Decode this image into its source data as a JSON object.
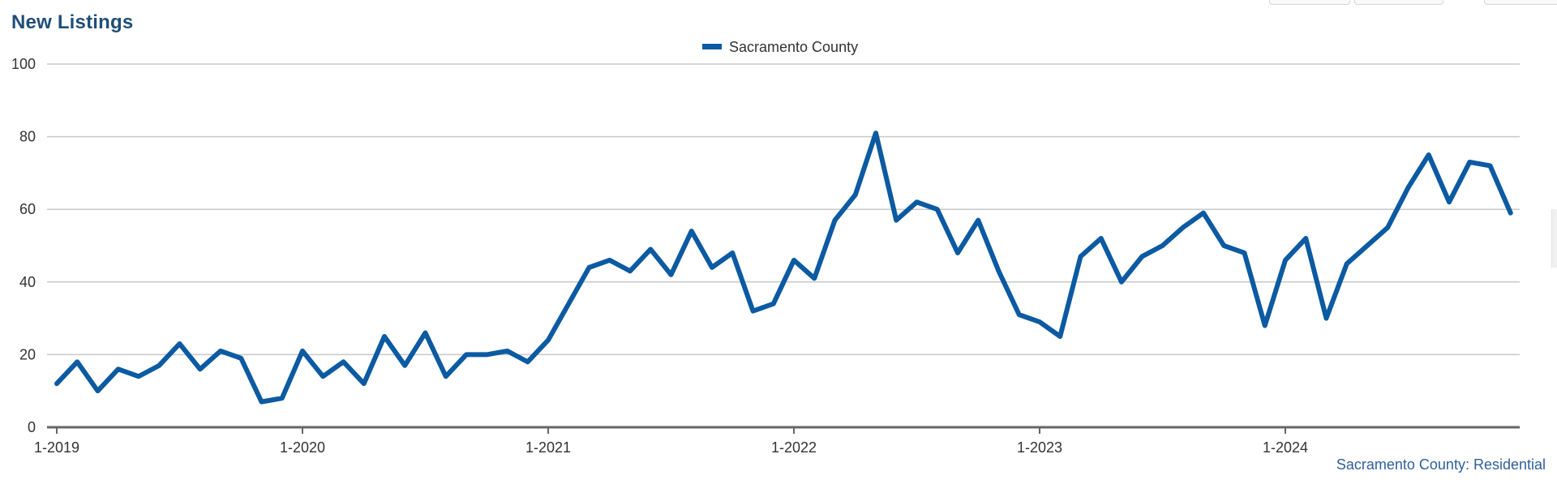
{
  "title": "New Listings",
  "source": "Sacramento County: Residential",
  "chart_data": {
    "type": "line",
    "title": "New Listings",
    "xlabel": "",
    "ylabel": "",
    "ylim": [
      0,
      100
    ],
    "yticks": [
      0,
      20,
      40,
      60,
      80,
      100
    ],
    "grid": true,
    "legend": "top-center",
    "x_tick_labels": [
      "1-2019",
      "1-2020",
      "1-2021",
      "1-2022",
      "1-2023",
      "1-2024"
    ],
    "x_start": "2019-01",
    "x_end": "2024-12",
    "series": [
      {
        "name": "Sacramento County",
        "color": "#0b5aa2",
        "values": [
          12,
          18,
          10,
          16,
          14,
          17,
          23,
          16,
          21,
          19,
          7,
          8,
          21,
          14,
          18,
          12,
          25,
          17,
          26,
          14,
          20,
          20,
          21,
          18,
          24,
          34,
          44,
          46,
          43,
          49,
          42,
          54,
          44,
          48,
          32,
          34,
          46,
          41,
          57,
          64,
          81,
          57,
          62,
          60,
          48,
          57,
          43,
          31,
          29,
          25,
          47,
          52,
          40,
          47,
          50,
          55,
          59,
          50,
          48,
          28,
          46,
          52,
          30,
          45,
          50,
          55,
          66,
          75,
          62,
          73,
          72,
          59
        ]
      }
    ]
  }
}
